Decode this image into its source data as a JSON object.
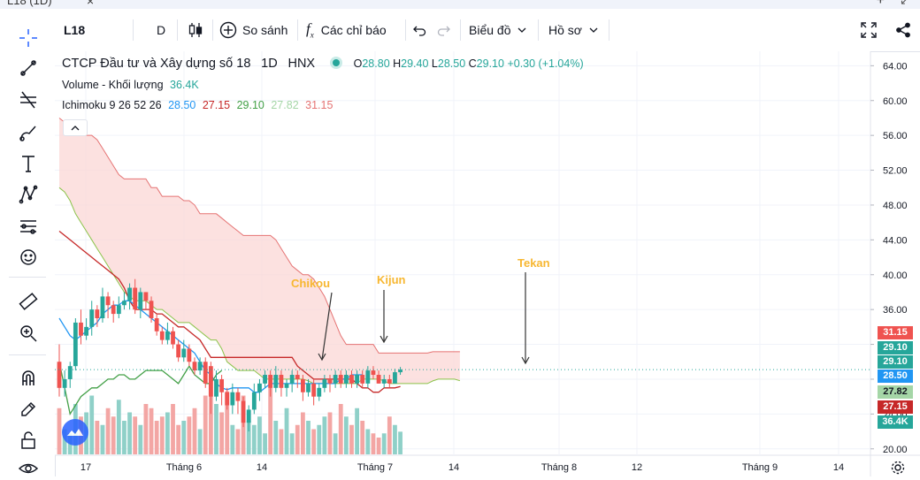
{
  "window": {
    "title": "L18 (1D)",
    "close": "×",
    "add": "+",
    "restore": "↙"
  },
  "toolbar": {
    "symbol": "L18",
    "interval": "D",
    "compare_label": "So sánh",
    "indicators_label": "Các chỉ báo",
    "chart_label": "Biểu đồ",
    "profile_label": "Hồ sơ"
  },
  "legend": {
    "name": "CTCP Đầu tư và Xây dựng số 18",
    "interval": "1D",
    "exchange": "HNX",
    "o_label": "O",
    "o": "28.80",
    "h_label": "H",
    "h": "29.40",
    "l_label": "L",
    "l": "28.50",
    "c_label": "C",
    "c": "29.10",
    "change": "+0.30 (+1.04%)",
    "volume_label": "Volume - Khối lượng",
    "volume": "36.4K",
    "ichimoku_label": "Ichimoku 9 26 52 26",
    "ichi_vals": [
      "28.50",
      "27.15",
      "29.10",
      "27.82",
      "31.15"
    ]
  },
  "colors": {
    "up": "#26a69a",
    "down": "#ef5350",
    "up_vol": "#8fd0c8",
    "down_vol": "#f3a6a4",
    "tenkan": "#2196f3",
    "kijun": "#c62828",
    "chikou": "#43a047",
    "span_a": "#8bc34a",
    "span_b": "#e57373",
    "cloud": "#fbd7d5",
    "annotation": "#f7b731"
  },
  "annotations": [
    "Chikou",
    "Kijun",
    "Tekan"
  ],
  "price_tags": [
    {
      "value": "31.15",
      "color": "#ef5350"
    },
    {
      "value": "29.10",
      "color": "#26a69a"
    },
    {
      "value": "29.10",
      "color": "#26a69a"
    },
    {
      "value": "28.50",
      "color": "#2196f3"
    },
    {
      "value": "27.82",
      "color": "#a5d6a7"
    },
    {
      "value": "27.15",
      "color": "#c62828"
    },
    {
      "value": "36.4K",
      "color": "#26a69a"
    }
  ],
  "chart_data": {
    "type": "candlestick",
    "y_axis": {
      "ticks": [
        "64.00",
        "60.00",
        "56.00",
        "52.00",
        "48.00",
        "44.00",
        "40.00",
        "36.00",
        "32.00",
        "28.00",
        "24.00",
        "20.00"
      ],
      "range": [
        19,
        65
      ]
    },
    "x_axis": {
      "ticks": [
        "17",
        "Tháng 6",
        "14",
        "Tháng 7",
        "14",
        "Tháng 8",
        "12",
        "Tháng 9",
        "14"
      ]
    },
    "candles": [
      [
        30,
        27,
        32,
        26
      ],
      [
        27,
        28,
        29,
        26
      ],
      [
        28,
        29.5,
        30,
        27
      ],
      [
        29.5,
        34.5,
        35,
        29
      ],
      [
        34.5,
        33,
        36,
        32
      ],
      [
        33,
        34,
        35,
        32.5
      ],
      [
        34,
        36,
        37,
        33
      ],
      [
        36,
        35,
        36.5,
        34
      ],
      [
        35,
        37.5,
        38.5,
        34.5
      ],
      [
        37.5,
        36.5,
        38,
        35
      ],
      [
        36.5,
        35.5,
        37,
        34.5
      ],
      [
        35.5,
        36.5,
        37.5,
        35
      ],
      [
        36.5,
        37,
        38,
        36
      ],
      [
        37,
        38.5,
        39,
        36
      ],
      [
        38.5,
        36,
        39.5,
        35.5
      ],
      [
        36,
        38,
        38.5,
        35
      ],
      [
        38,
        37,
        38,
        36
      ],
      [
        37,
        35,
        37.5,
        34.5
      ],
      [
        35,
        33.5,
        35.5,
        33
      ],
      [
        33.5,
        32.5,
        34,
        32
      ],
      [
        32.5,
        33.5,
        34.5,
        32
      ],
      [
        33.5,
        32,
        34,
        31.5
      ],
      [
        32,
        30.5,
        32.5,
        30
      ],
      [
        30.5,
        31.5,
        32.5,
        30
      ],
      [
        31.5,
        30,
        32,
        29.5
      ],
      [
        30,
        29,
        30.5,
        28.5
      ],
      [
        29,
        30,
        30.5,
        28.5
      ],
      [
        30,
        27.5,
        30.5,
        27
      ],
      [
        29.5,
        26,
        30,
        24
      ],
      [
        26,
        28,
        29,
        25.5
      ],
      [
        28,
        26.5,
        28.5,
        25
      ],
      [
        26.5,
        25,
        27,
        24.5
      ],
      [
        25,
        26.5,
        27.5,
        24
      ],
      [
        26.5,
        25.5,
        27,
        24
      ],
      [
        25.5,
        23,
        26,
        22.5
      ],
      [
        23,
        24.5,
        25,
        22
      ],
      [
        24.5,
        26.5,
        27.5,
        24
      ],
      [
        26.5,
        27.5,
        28,
        25.5
      ],
      [
        27.5,
        28.5,
        29,
        27
      ],
      [
        28.5,
        27,
        29,
        26
      ],
      [
        27,
        28.5,
        29.5,
        26.5
      ],
      [
        28.5,
        27,
        29,
        26
      ],
      [
        27,
        27.5,
        28,
        26
      ],
      [
        27.5,
        28.5,
        29,
        26.5
      ],
      [
        28.5,
        28,
        29,
        27
      ],
      [
        28,
        26.5,
        28.5,
        25.5
      ],
      [
        26.5,
        27.5,
        28,
        26
      ],
      [
        27.5,
        26,
        28,
        25
      ],
      [
        26,
        27,
        27.5,
        25.5
      ],
      [
        27,
        28,
        28.5,
        26.5
      ],
      [
        28,
        27.5,
        28.5,
        26.5
      ],
      [
        27.5,
        28.5,
        29,
        27
      ],
      [
        28.5,
        27.5,
        29,
        27
      ],
      [
        27.5,
        28.5,
        29,
        27
      ],
      [
        28.5,
        27.5,
        29,
        27
      ],
      [
        27.5,
        28.5,
        29,
        27
      ],
      [
        28.5,
        27.5,
        29,
        27
      ],
      [
        27.5,
        29,
        29.5,
        27
      ],
      [
        29,
        28.5,
        29.5,
        28
      ],
      [
        28.5,
        27.5,
        29,
        27.5
      ],
      [
        27.5,
        28,
        28.5,
        27
      ],
      [
        28,
        27.5,
        28.5,
        27
      ],
      [
        27.5,
        28.8,
        29.2,
        27.5
      ],
      [
        28.8,
        29.1,
        29.4,
        28.5
      ]
    ],
    "volume": [
      55,
      30,
      25,
      60,
      45,
      50,
      70,
      40,
      35,
      55,
      45,
      65,
      40,
      50,
      45,
      35,
      60,
      55,
      40,
      45,
      50,
      60,
      35,
      40,
      45,
      55,
      30,
      70,
      95,
      60,
      50,
      75,
      35,
      30,
      70,
      40,
      35,
      45,
      25,
      85,
      40,
      30,
      55,
      25,
      35,
      50,
      40,
      30,
      35,
      45,
      50,
      25,
      60,
      45,
      35,
      55,
      40,
      30,
      25,
      20,
      25,
      45,
      35,
      27
    ],
    "tenkan": [
      35,
      34,
      33,
      32.5,
      33,
      33.5,
      34,
      34.5,
      35.5,
      36,
      36.5,
      36.5,
      37,
      37,
      36.5,
      36,
      35.5,
      35,
      34.5,
      34,
      33.5,
      33,
      32.5,
      32,
      31.5,
      31,
      30,
      29,
      28.5,
      27.5,
      27,
      26.8,
      27,
      27,
      27,
      27,
      26.5,
      26.5,
      27,
      27.5,
      27.5,
      27.5,
      27.5,
      27.5,
      27.5,
      27.5,
      27.5,
      27.5,
      27.5,
      27.5,
      27.5,
      27.5,
      28,
      28,
      28.5,
      28.5,
      28.5
    ],
    "kijun": [
      45,
      44.5,
      44,
      43.5,
      43,
      42.5,
      42,
      41.5,
      41,
      40.5,
      40,
      39.5,
      38.5,
      37,
      36,
      36,
      36,
      36,
      35.5,
      35.5,
      35,
      34.5,
      34,
      34,
      33.5,
      33,
      32.5,
      31.5,
      30.5,
      30.5,
      30.5,
      30.5,
      30.5,
      30.5,
      30.5,
      30.5,
      30.5,
      30.5,
      30.5,
      30.5,
      30.5,
      30.5,
      30.5,
      30.5,
      29.5,
      29,
      28.5,
      28,
      28,
      28,
      28,
      28,
      28,
      28,
      28,
      27.5,
      27,
      27,
      26.5,
      26.5,
      27,
      27,
      27,
      27.15
    ],
    "chikou": [
      30,
      27,
      24,
      25,
      26,
      26.5,
      27,
      27,
      27.5,
      28,
      28,
      28.5,
      28.5,
      28,
      28,
      28.5,
      29,
      29,
      29,
      29,
      28.5,
      28,
      27.5,
      28.5,
      29.5,
      28.5,
      28,
      27.5,
      27.5,
      28.5,
      29
    ],
    "span_a": [
      50,
      49.5,
      48.5,
      47,
      46,
      45,
      44,
      43,
      42,
      41,
      40,
      39,
      38,
      37.5,
      37,
      37,
      37,
      36.5,
      36,
      36,
      35.5,
      35,
      34.5,
      34.5,
      34.5,
      34,
      33.5,
      33,
      32.5,
      32.5,
      31.5,
      30,
      29.5,
      29,
      29,
      29,
      29,
      28.5,
      28,
      28,
      28,
      28,
      28,
      28,
      28,
      28,
      27.8,
      27.5,
      27.5,
      27.5,
      27.5,
      27.5,
      27.5,
      27.5,
      27.5,
      27.5,
      28,
      28,
      28,
      28,
      27.8,
      27.5,
      27.5,
      27.5,
      27.5,
      27.5,
      27.5,
      27.5,
      27.5,
      27.8,
      28,
      28,
      28,
      28,
      27.82
    ],
    "span_b": [
      58,
      57.5,
      57,
      56.5,
      56,
      56,
      56,
      55.5,
      54.5,
      53.5,
      52.5,
      51.5,
      51,
      51,
      51,
      51,
      51,
      50,
      50,
      49,
      49,
      49,
      49,
      48.5,
      48.5,
      48,
      47,
      47,
      47,
      47,
      46.5,
      46,
      45.5,
      45,
      44.5,
      44.5,
      44.5,
      44.5,
      44.5,
      44.5,
      44,
      43,
      42,
      41,
      40.5,
      40,
      40,
      39.5,
      38.5,
      37.5,
      36,
      34.5,
      33,
      32,
      32,
      32,
      32,
      32,
      32,
      31,
      31,
      31,
      31,
      31,
      31,
      31,
      31,
      31,
      31,
      31.15,
      31.15,
      31.15,
      31.15,
      31.15,
      31.15
    ]
  }
}
